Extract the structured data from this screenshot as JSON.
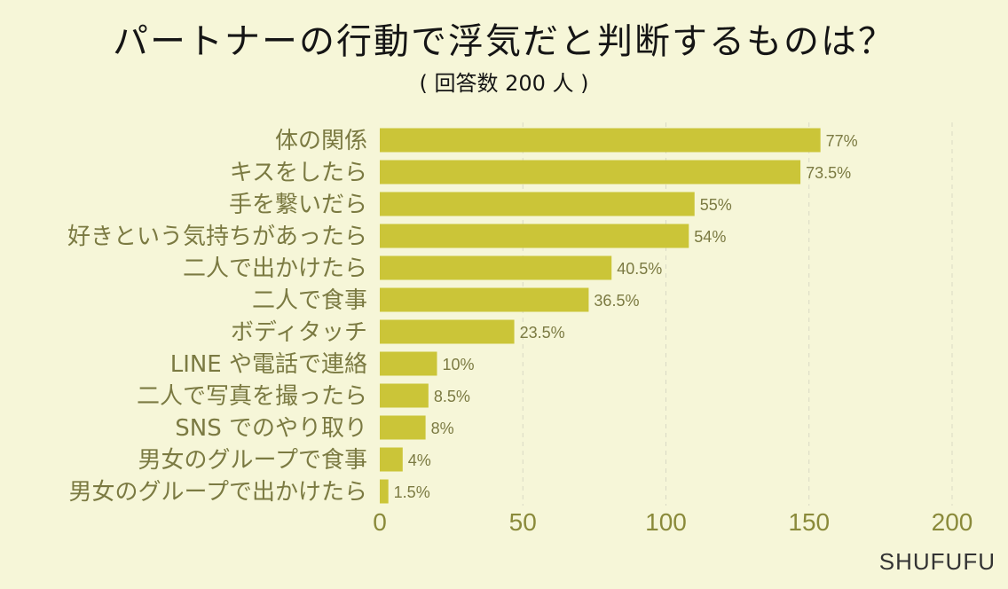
{
  "title": "パートナーの行動で浮気だと判断するものは？",
  "subtitle": "( 回答数 200 人 )",
  "brand": "SHUFUFU",
  "colors": {
    "background": "#f6f6d8",
    "bar": "#cbc538",
    "label": "#7b7a42",
    "axis_tick": "#8a8a3a",
    "grid": "#d9d9c4"
  },
  "chart_data": {
    "type": "bar",
    "orientation": "horizontal",
    "categories": [
      "体の関係",
      "キスをしたら",
      "手を繋いだら",
      "好きという気持ちがあったら",
      "二人で出かけたら",
      "二人で食事",
      "ボディタッチ",
      "LINE や電話で連絡",
      "二人で写真を撮ったら",
      "SNS でのやり取り",
      "男女のグループで食事",
      "男女のグループで出かけたら"
    ],
    "values": [
      154,
      147,
      110,
      108,
      81,
      73,
      47,
      20,
      17,
      16,
      8,
      3
    ],
    "data_labels": [
      "77%",
      "73.5%",
      "55%",
      "54%",
      "40.5%",
      "36.5%",
      "23.5%",
      "10%",
      "8.5%",
      "8%",
      "4%",
      "1.5%"
    ],
    "xlim": [
      0,
      200
    ],
    "xticks": [
      "0",
      "50",
      "100",
      "150",
      "200"
    ],
    "grid": true
  }
}
